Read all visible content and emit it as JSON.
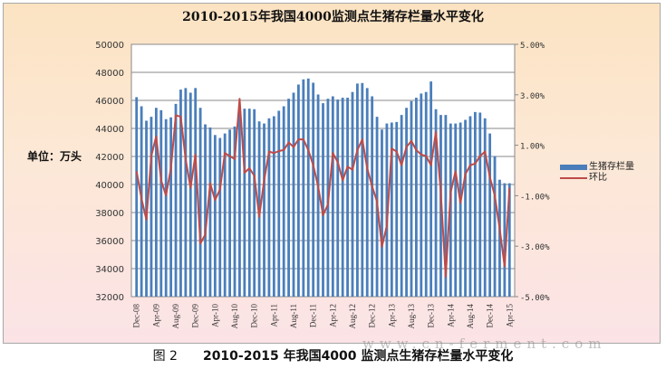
{
  "chart_data": {
    "type": "bar+line",
    "title": "2010-2015年我国4000监测点生猪存栏量水平变化",
    "unit_label": "单位：万头",
    "x_tick_labels": [
      "Dec-08",
      "Apr-09",
      "Aug-09",
      "Dec-09",
      "Apr-10",
      "Aug-10",
      "Dec-10",
      "Apr-11",
      "Aug-11",
      "Dec-11",
      "Apr-12",
      "Aug-12",
      "Dec-12",
      "Apr-13",
      "Aug-13",
      "Dec-13",
      "Apr-14",
      "Aug-14",
      "Dec-14",
      "Apr-15"
    ],
    "x_range": "Dec-08 to Apr-15 (monthly)",
    "y_left": {
      "min": 32000,
      "max": 50000,
      "step": 2000,
      "ticks": [
        "32000",
        "34000",
        "36000",
        "38000",
        "40000",
        "42000",
        "44000",
        "46000",
        "48000",
        "50000"
      ]
    },
    "y_right": {
      "min": -5,
      "max": 5,
      "step": 2,
      "ticks": [
        "-5.00%",
        "-3.00%",
        "-1.00%",
        "1.00%",
        "3.00%",
        "5.00%"
      ]
    },
    "grid": true,
    "legend_position": "right",
    "series": [
      {
        "name": "生猪存栏量",
        "type": "bar",
        "axis": "left",
        "color": "#4a7ebb",
        "values": [
          46230,
          45580,
          44550,
          44830,
          45470,
          45300,
          44660,
          44790,
          45750,
          46770,
          46880,
          46550,
          46880,
          45470,
          44290,
          44070,
          43530,
          43320,
          43640,
          43920,
          44140,
          45410,
          45410,
          45410,
          45370,
          44500,
          44350,
          44720,
          44870,
          45260,
          45580,
          46120,
          46550,
          47130,
          47500,
          47560,
          47260,
          46420,
          45800,
          46120,
          46290,
          46060,
          46190,
          46190,
          46600,
          47200,
          47240,
          46880,
          46290,
          44830,
          43920,
          44350,
          44420,
          44460,
          44960,
          45470,
          45950,
          46190,
          46490,
          46600,
          47350,
          45370,
          44960,
          44960,
          44350,
          44350,
          44420,
          44610,
          44870,
          45170,
          45130,
          44720,
          43640,
          42030,
          40340,
          40090,
          40090
        ]
      },
      {
        "name": "环比",
        "type": "line",
        "axis": "right",
        "unit": "%",
        "color": "#be4b48",
        "values": [
          -0.03,
          -1.11,
          -1.95,
          0.57,
          1.35,
          -0.39,
          -0.99,
          0.09,
          2.19,
          2.13,
          0.45,
          -0.69,
          0.63,
          -2.9,
          -2.54,
          -0.51,
          -1.17,
          -0.75,
          0.69,
          0.57,
          0.45,
          2.84,
          -0.09,
          0.09,
          -0.21,
          -1.83,
          -0.39,
          0.75,
          0.69,
          0.77,
          0.81,
          1.11,
          0.93,
          1.23,
          1.23,
          0.81,
          0.21,
          -0.63,
          -1.77,
          -1.35,
          0.69,
          0.33,
          -0.39,
          0.15,
          0.03,
          0.81,
          1.23,
          0.09,
          -0.63,
          -1.23,
          -3.02,
          -2.19,
          0.87,
          0.75,
          0.21,
          0.93,
          1.17,
          0.81,
          0.63,
          0.57,
          0.21,
          1.53,
          -0.87,
          -4.22,
          -0.87,
          -0.03,
          -1.29,
          -0.15,
          0.21,
          0.27,
          0.57,
          0.75,
          -0.27,
          -0.99,
          -2.31,
          -3.8,
          -0.69
        ]
      }
    ]
  },
  "caption": {
    "fig": "图 2",
    "text": "2010-2015 年我国4000 监测点生猪存栏量水平变化"
  },
  "watermark": "www.cn-ferment.com"
}
